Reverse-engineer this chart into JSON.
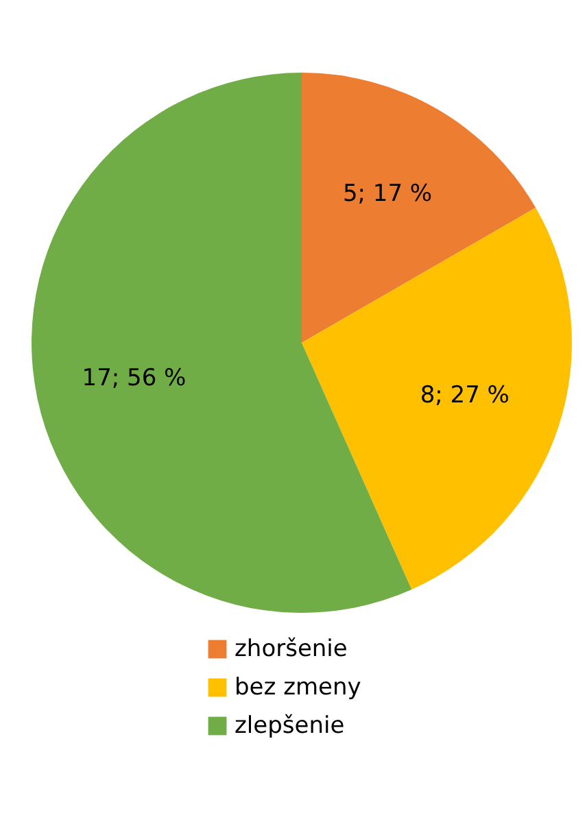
{
  "chart_data": {
    "type": "pie",
    "categories": [
      "zhoršenie",
      "bez zmeny",
      "zlepšenie"
    ],
    "values": [
      5,
      8,
      17
    ],
    "colors": [
      "#ed7d31",
      "#ffc000",
      "#70ad47"
    ],
    "value_labels": [
      "5; 17 %",
      "8; 27 %",
      "17; 56 %"
    ],
    "legend": "bottom"
  }
}
